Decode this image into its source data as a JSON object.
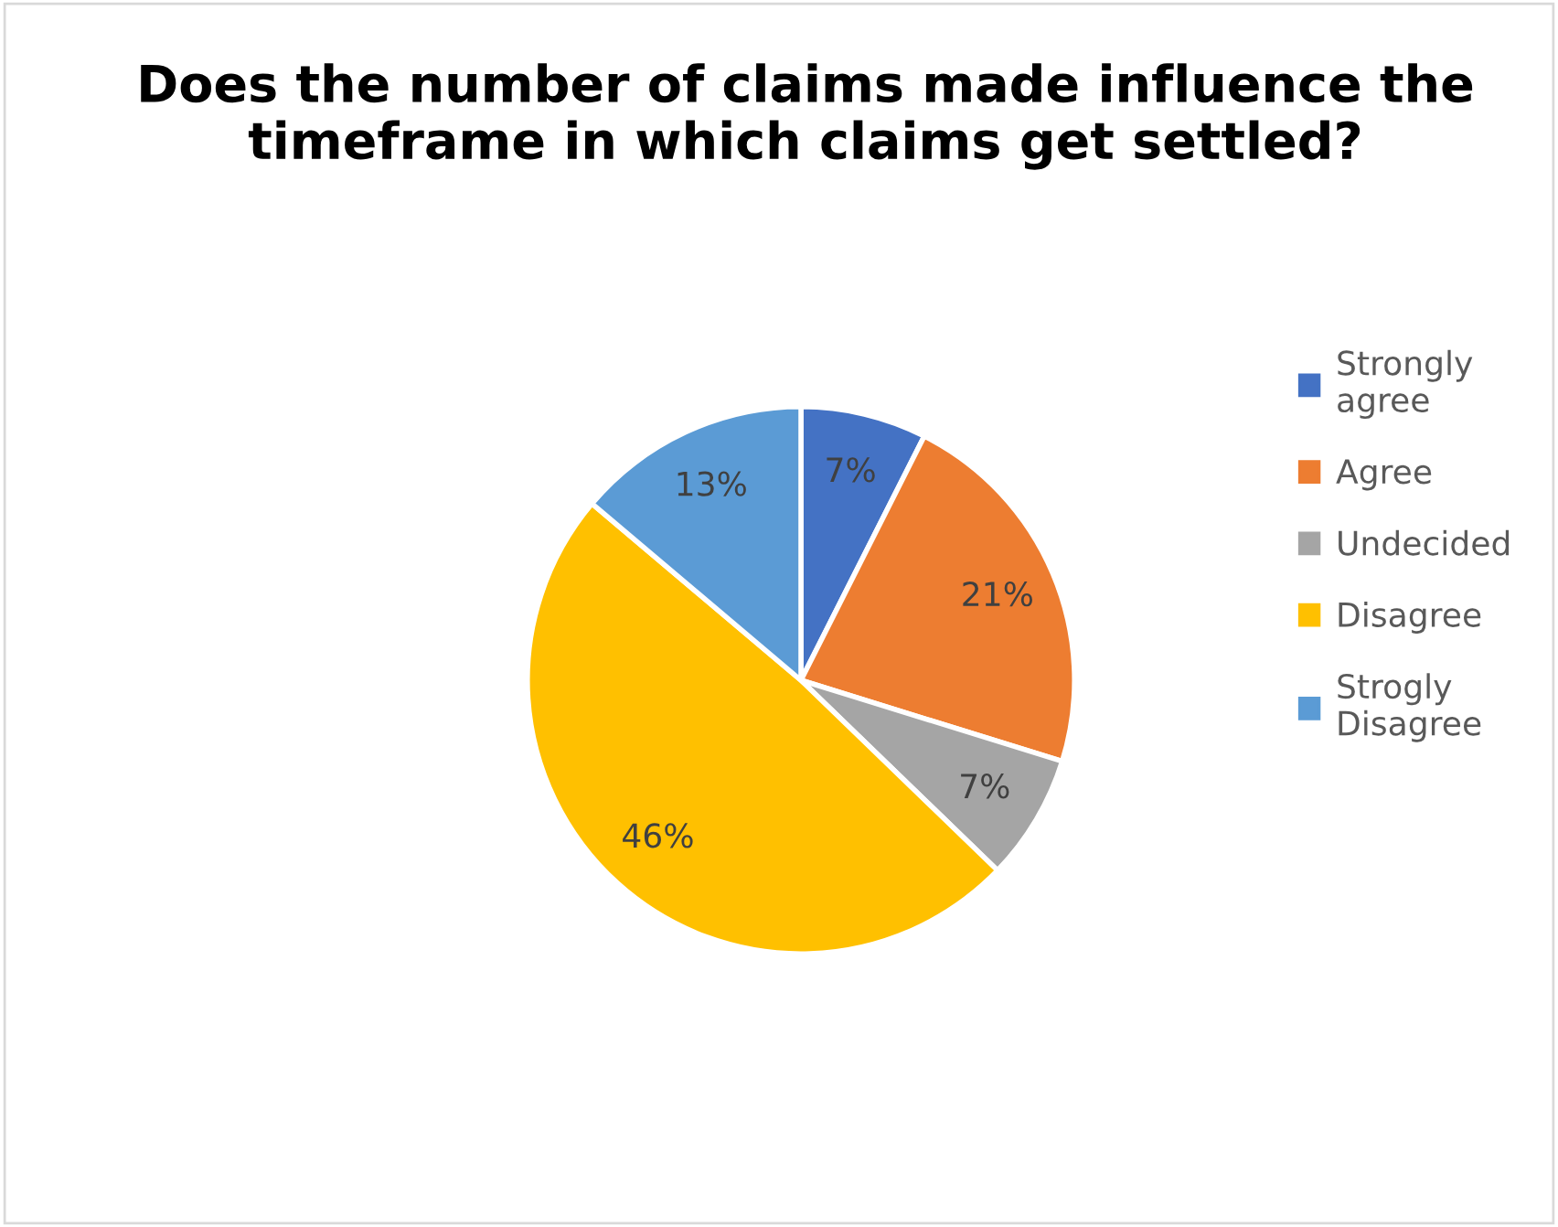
{
  "chart_data": {
    "type": "pie",
    "title": "Does the number of claims made influence the timeframe in which claims get settled?",
    "categories": [
      "Strongly agree",
      "Agree",
      "Undecided",
      "Disagree",
      "Strogly Disagree"
    ],
    "values": [
      7,
      21,
      7,
      46,
      13
    ],
    "value_labels": [
      "7%",
      "21%",
      "7%",
      "46%",
      "13%"
    ],
    "colors": [
      "#4472c4",
      "#ed7d31",
      "#a5a5a5",
      "#ffc000",
      "#5b9bd5"
    ],
    "legend": "right"
  }
}
